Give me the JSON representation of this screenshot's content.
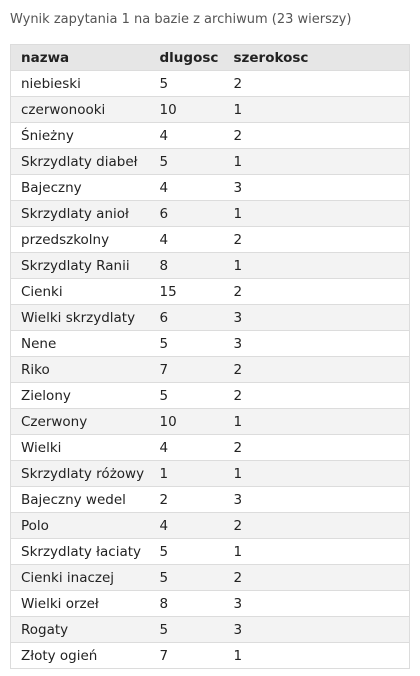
{
  "title": "Wynik zapytania 1 na bazie z archiwum (23 wierszy)",
  "table": {
    "columns": [
      "nazwa",
      "dlugosc",
      "szerokosc"
    ],
    "rows": [
      [
        "niebieski",
        5,
        2
      ],
      [
        "czerwonooki",
        10,
        1
      ],
      [
        "Śnieżny",
        4,
        2
      ],
      [
        "Skrzydlaty diabeł",
        5,
        1
      ],
      [
        "Bajeczny",
        4,
        3
      ],
      [
        "Skrzydlaty anioł",
        6,
        1
      ],
      [
        "przedszkolny",
        4,
        2
      ],
      [
        "Skrzydlaty Ranii",
        8,
        1
      ],
      [
        "Cienki",
        15,
        2
      ],
      [
        "Wielki skrzydlaty",
        6,
        3
      ],
      [
        "Nene",
        5,
        3
      ],
      [
        "Riko",
        7,
        2
      ],
      [
        "Zielony",
        5,
        2
      ],
      [
        "Czerwony",
        10,
        1
      ],
      [
        "Wielki",
        4,
        2
      ],
      [
        "Skrzydlaty różowy",
        1,
        1
      ],
      [
        "Bajeczny wedel",
        2,
        3
      ],
      [
        "Polo",
        4,
        2
      ],
      [
        "Skrzydlaty łaciaty",
        5,
        1
      ],
      [
        "Cienki inaczej",
        5,
        2
      ],
      [
        "Wielki orzeł",
        8,
        3
      ],
      [
        "Rogaty",
        5,
        3
      ],
      [
        "Złoty ogień",
        7,
        1
      ]
    ]
  }
}
